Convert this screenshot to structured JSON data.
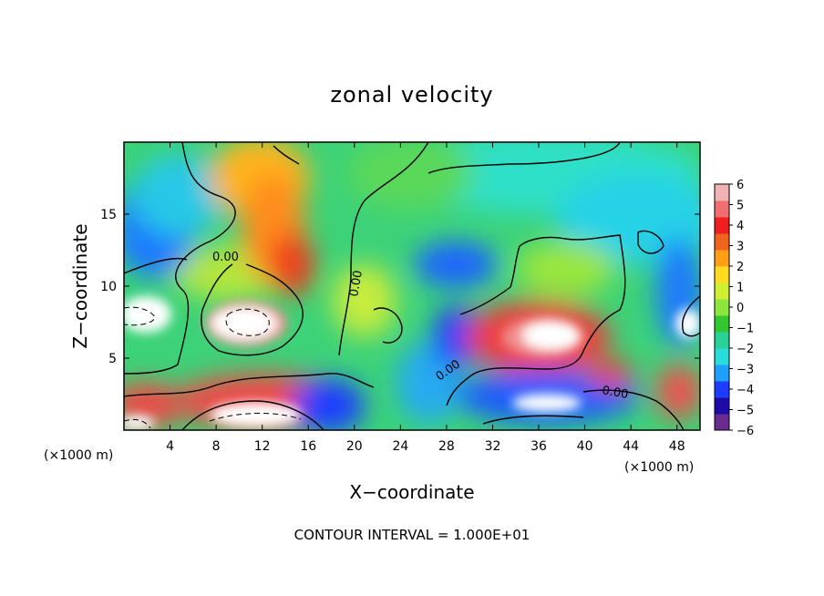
{
  "chart_data": {
    "type": "heatmap",
    "title": "zonal velocity",
    "xlabel": "X−coordinate",
    "ylabel": "Z−coordinate",
    "x_unit_label": "(×1000 m)",
    "footer": "CONTOUR INTERVAL = 1.000E+01",
    "xlim": [
      0,
      50
    ],
    "ylim": [
      0,
      20
    ],
    "x_ticks": [
      4,
      8,
      12,
      16,
      20,
      24,
      28,
      32,
      36,
      40,
      44,
      48
    ],
    "y_ticks": [
      5,
      10,
      15
    ],
    "colorbar": {
      "labels": [
        "6",
        "5",
        "4",
        "3",
        "2",
        "1",
        "0",
        "−1",
        "−2",
        "−3",
        "−4",
        "−5",
        "−6"
      ],
      "min": -6,
      "max": 6,
      "colors": [
        "#6a2c91",
        "#1e0aa8",
        "#1e3cff",
        "#1ea0ff",
        "#28dcdc",
        "#28d296",
        "#32c832",
        "#8ce63c",
        "#d2f032",
        "#ffdc1e",
        "#ffa014",
        "#f0641e",
        "#f01e1e",
        "#f06e6e",
        "#f0b4b4"
      ]
    },
    "contour_labels": [
      {
        "text": "0.00",
        "x": 8.5,
        "z": 12.0
      },
      {
        "text": "0.00",
        "x": 20.0,
        "z": 10.5
      },
      {
        "text": "0.00",
        "x": 28.5,
        "z": 4.3
      },
      {
        "text": "0.00",
        "x": 42.5,
        "z": 2.6
      }
    ],
    "features": [
      {
        "x": 11,
        "z": 8.5,
        "value": 7
      },
      {
        "x": 14,
        "z": 13,
        "value": 5
      },
      {
        "x": 12,
        "z": 17,
        "value": 3
      },
      {
        "x": 36,
        "z": 7,
        "value": 7
      },
      {
        "x": 3,
        "z": 13,
        "value": -3.5
      },
      {
        "x": 1,
        "z": 8,
        "value": 7
      },
      {
        "x": 38,
        "z": 2,
        "value": 7
      },
      {
        "x": 28,
        "z": 6,
        "value": -4
      },
      {
        "x": 29,
        "z": 11.5,
        "value": -3.5
      },
      {
        "x": 48,
        "z": 10,
        "value": -3
      },
      {
        "x": 12,
        "z": 1.5,
        "value": 7
      },
      {
        "x": 18,
        "z": 2,
        "value": -5
      }
    ]
  }
}
